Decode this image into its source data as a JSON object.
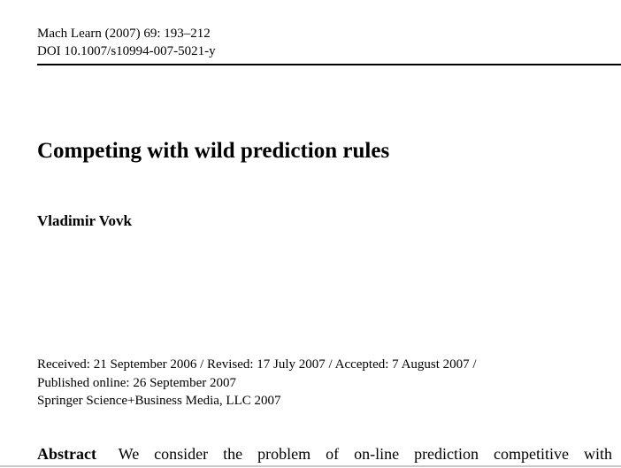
{
  "journal": {
    "citation": "Mach Learn (2007) 69: 193–212",
    "doi": "DOI 10.1007/s10994-007-5021-y"
  },
  "paper": {
    "title": "Competing with wild prediction rules",
    "author": "Vladimir Vovk"
  },
  "history": {
    "dates": "Received: 21 September 2006 / Revised: 17 July 2007 / Accepted: 7 August 2007 /",
    "published": "Published online: 26 September 2007",
    "copyright": "Springer Science+Business Media, LLC 2007"
  },
  "abstract": {
    "label": "Abstract",
    "text": "We consider the problem of on-line prediction competitive with"
  }
}
